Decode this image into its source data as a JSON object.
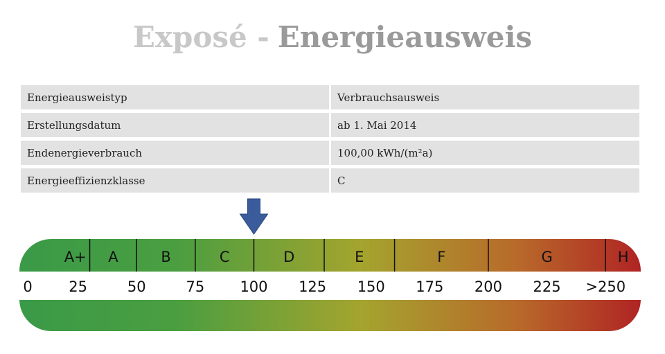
{
  "header": {
    "title_prefix": "Exposé -",
    "title_main": "Energieausweis"
  },
  "table": {
    "rows": [
      [
        "Energieausweistyp",
        "Verbrauchsausweis"
      ],
      [
        "Erstellungsdatum",
        "ab 1. Mai 2014"
      ],
      [
        "Endenergieverbrauch",
        "100,00 kWh/(m²a)"
      ],
      [
        "Energieeffizienzklasse",
        "C"
      ]
    ]
  },
  "scale": {
    "xlim": [
      0,
      265
    ],
    "classes": [
      {
        "label": "A+",
        "max": 30
      },
      {
        "label": "A",
        "max": 50
      },
      {
        "label": "B",
        "max": 75
      },
      {
        "label": "C",
        "max": 100
      },
      {
        "label": "D",
        "max": 130
      },
      {
        "label": "E",
        "max": 160
      },
      {
        "label": "F",
        "max": 200
      },
      {
        "label": "G",
        "max": 250
      },
      {
        "label": "H"
      }
    ],
    "ticks": [
      0,
      25,
      50,
      75,
      100,
      125,
      150,
      175,
      200,
      225,
      {
        "value": 250,
        "label": ">250"
      }
    ],
    "marker": 100
  }
}
